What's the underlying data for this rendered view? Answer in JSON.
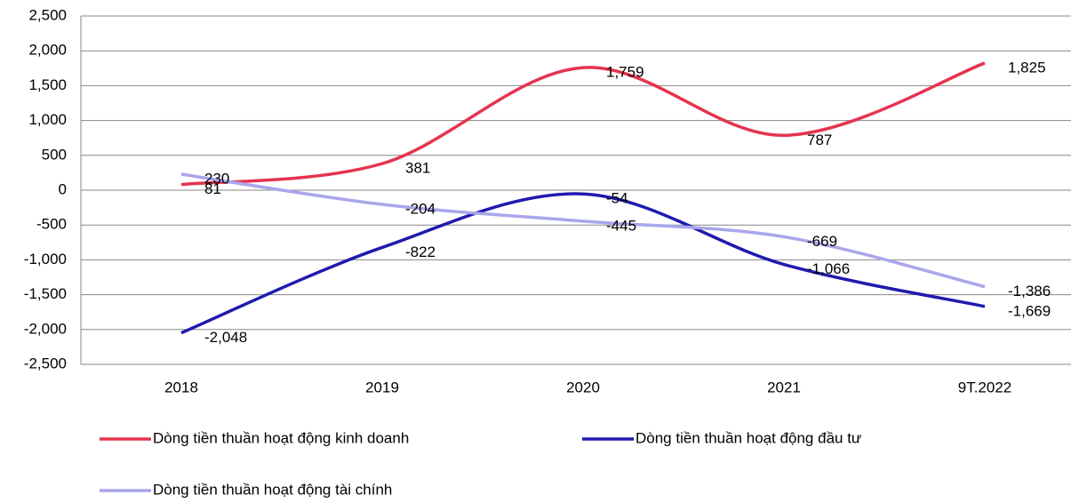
{
  "chart_data": {
    "type": "line",
    "categories": [
      "2018",
      "2019",
      "2020",
      "2021",
      "9T.2022"
    ],
    "series": [
      {
        "name": "Dòng tiền thuần hoạt động kinh doanh",
        "color": "#e5344f",
        "values": [
          81,
          381,
          1759,
          787,
          1825
        ],
        "value_labels": [
          "81",
          "381",
          "1,759",
          "787",
          "1,825"
        ]
      },
      {
        "name": "Dòng tiền thuần hoạt động đầu tư",
        "color": "#1f1aad",
        "values": [
          -2048,
          -822,
          -54,
          -1066,
          -1669
        ],
        "value_labels": [
          "-2,048",
          "-822",
          "-54",
          "-1,066",
          "-1,669"
        ]
      },
      {
        "name": "Dòng tiền thuần hoạt động tài chính",
        "color": "#a9a6ec",
        "values": [
          230,
          -204,
          -445,
          -669,
          -1386
        ],
        "value_labels": [
          "230",
          "-204",
          "-445",
          "-669",
          "-1,386"
        ]
      }
    ],
    "ylim": [
      -2500,
      2500
    ],
    "yticks": [
      {
        "value": -2500,
        "label": "-2,500"
      },
      {
        "value": -2000,
        "label": "-2,000"
      },
      {
        "value": -1500,
        "label": "-1,500"
      },
      {
        "value": -1000,
        "label": "-1,000"
      },
      -500,
      0,
      500,
      {
        "value": 1000,
        "label": "1,000"
      },
      {
        "value": 1500,
        "label": "1,500"
      },
      {
        "value": 2000,
        "label": "2,000"
      },
      {
        "value": 2500,
        "label": "2,500"
      }
    ],
    "grid": true
  }
}
